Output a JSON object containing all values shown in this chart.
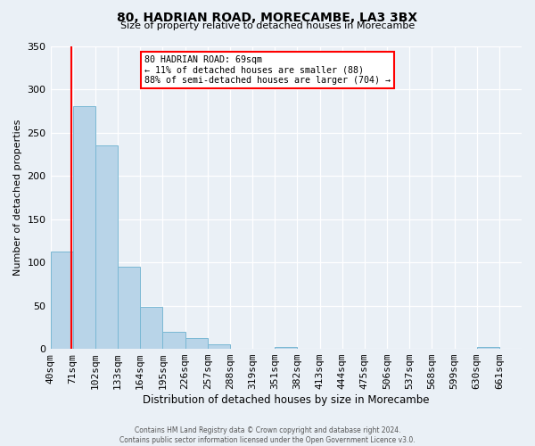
{
  "title": "80, HADRIAN ROAD, MORECAMBE, LA3 3BX",
  "subtitle": "Size of property relative to detached houses in Morecambe",
  "xlabel": "Distribution of detached houses by size in Morecambe",
  "ylabel": "Number of detached properties",
  "footer_lines": [
    "Contains HM Land Registry data © Crown copyright and database right 2024.",
    "Contains public sector information licensed under the Open Government Licence v3.0."
  ],
  "bin_labels": [
    "40sqm",
    "71sqm",
    "102sqm",
    "133sqm",
    "164sqm",
    "195sqm",
    "226sqm",
    "257sqm",
    "288sqm",
    "319sqm",
    "351sqm",
    "382sqm",
    "413sqm",
    "444sqm",
    "475sqm",
    "506sqm",
    "537sqm",
    "568sqm",
    "599sqm",
    "630sqm",
    "661sqm"
  ],
  "bar_values": [
    112,
    280,
    235,
    95,
    49,
    20,
    12,
    5,
    0,
    0,
    2,
    0,
    0,
    0,
    0,
    0,
    0,
    0,
    0,
    2,
    0
  ],
  "bar_color": "#b8d4e8",
  "bar_edge_color": "#7ab8d4",
  "annotation_box": {
    "text_lines": [
      "80 HADRIAN ROAD: 69sqm",
      "← 11% of detached houses are smaller (88)",
      "88% of semi-detached houses are larger (704) →"
    ],
    "box_color": "white",
    "box_edge_color": "red"
  },
  "line_color": "red",
  "ylim": [
    0,
    350
  ],
  "yticks": [
    0,
    50,
    100,
    150,
    200,
    250,
    300,
    350
  ],
  "background_color": "#eaf0f6",
  "grid_color": "white"
}
